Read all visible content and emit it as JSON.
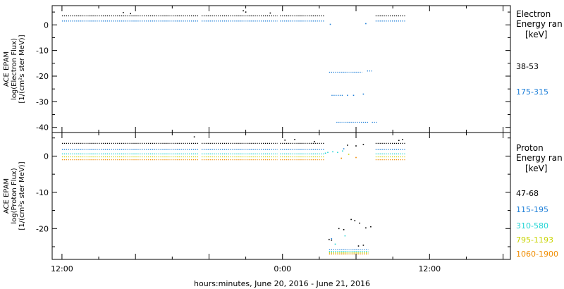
{
  "chart_data": [
    {
      "type": "scatter",
      "ylabel_lines": [
        "ACE EPAM",
        "log(Electron Flux)",
        "[1/(cm²s ster MeV)]"
      ],
      "legend_title_lines": [
        "Electron",
        "Energy ran",
        "[keV]"
      ],
      "legend_placement": "right",
      "ylim": [
        -42,
        7.5
      ],
      "y_ticks": [
        0,
        -10,
        -20,
        -30,
        -40
      ],
      "x_ticks": [
        0,
        6,
        12,
        18,
        24,
        30,
        36
      ],
      "grid": false,
      "series": [
        {
          "name": "38-53",
          "color": "#000000",
          "segments": [
            {
              "x0": 0,
              "x1": 6.6,
              "y": 3.5
            },
            {
              "x0": 6.7,
              "x1": 11.2,
              "y": 3.5
            },
            {
              "x0": 11.4,
              "x1": 17.6,
              "y": 3.5
            },
            {
              "x0": 17.8,
              "x1": 21.4,
              "y": 3.5
            },
            {
              "x0": 25.6,
              "x1": 28.0,
              "y": 3.5
            }
          ],
          "points": [
            {
              "x": 5.0,
              "y": 4.8
            },
            {
              "x": 5.6,
              "y": 4.4
            },
            {
              "x": 14.8,
              "y": 5.5
            },
            {
              "x": 15.0,
              "y": 5.0
            },
            {
              "x": 17.0,
              "y": 4.6
            }
          ]
        },
        {
          "name": "175-315",
          "color": "#1e7fd8",
          "segments": [
            {
              "x0": 0,
              "x1": 6.6,
              "y": 1.5
            },
            {
              "x0": 6.7,
              "x1": 11.2,
              "y": 1.5
            },
            {
              "x0": 11.4,
              "x1": 17.6,
              "y": 1.5
            },
            {
              "x0": 17.8,
              "x1": 21.4,
              "y": 1.5
            },
            {
              "x0": 25.6,
              "x1": 28.0,
              "y": 1.5
            },
            {
              "x0": 21.8,
              "x1": 24.5,
              "y": -18.5
            },
            {
              "x0": 24.9,
              "x1": 25.3,
              "y": -18.0
            },
            {
              "x0": 22.0,
              "x1": 23.0,
              "y": -27.5
            },
            {
              "x0": 22.4,
              "x1": 25.0,
              "y": -38.0
            },
            {
              "x0": 25.3,
              "x1": 25.7,
              "y": -38.0
            }
          ],
          "points": [
            {
              "x": 23.3,
              "y": -27.5
            },
            {
              "x": 23.8,
              "y": -27.5
            },
            {
              "x": 24.6,
              "y": -27.0
            },
            {
              "x": 24.8,
              "y": 0.5
            },
            {
              "x": 21.9,
              "y": 0.2
            }
          ]
        }
      ]
    },
    {
      "type": "scatter",
      "ylabel_lines": [
        "ACE EPAM",
        "log(Proton Flux)",
        "[1/(cm²s ster MeV)]"
      ],
      "legend_title_lines": [
        "Proton",
        "Energy ran",
        "[keV]"
      ],
      "legend_placement": "right",
      "ylim": [
        -28.5,
        6.5
      ],
      "y_ticks": [
        0,
        -10,
        -20
      ],
      "x_ticks": [
        0,
        6,
        12,
        18,
        24,
        30,
        36
      ],
      "x_tick_labels": [
        "12:00",
        "",
        "",
        "0:00",
        "",
        "12:00",
        ""
      ],
      "xlabel": "hours:minutes, June 20, 2016 - June 21, 2016",
      "grid": false,
      "series": [
        {
          "name": "47-68",
          "color": "#000000",
          "segments": [
            {
              "x0": 0,
              "x1": 6.6,
              "y": 3.5
            },
            {
              "x0": 6.7,
              "x1": 11.2,
              "y": 3.5
            },
            {
              "x0": 11.4,
              "x1": 17.6,
              "y": 3.5
            },
            {
              "x0": 17.8,
              "x1": 21.4,
              "y": 3.5
            },
            {
              "x0": 25.6,
              "x1": 28.0,
              "y": 3.5
            }
          ],
          "points": [
            {
              "x": 10.8,
              "y": 5.3
            },
            {
              "x": 18.2,
              "y": 4.4
            },
            {
              "x": 19.0,
              "y": 4.6
            },
            {
              "x": 20.6,
              "y": 4.0
            },
            {
              "x": 23.3,
              "y": 3.0
            },
            {
              "x": 24.0,
              "y": 2.8
            },
            {
              "x": 24.6,
              "y": 3.2
            },
            {
              "x": 27.5,
              "y": 4.3
            },
            {
              "x": 27.8,
              "y": 4.6
            },
            {
              "x": 21.8,
              "y": -23.0
            },
            {
              "x": 22.0,
              "y": -23.2
            },
            {
              "x": 22.6,
              "y": -20.0
            },
            {
              "x": 23.0,
              "y": -20.3
            },
            {
              "x": 23.6,
              "y": -17.5
            },
            {
              "x": 23.9,
              "y": -17.8
            },
            {
              "x": 24.3,
              "y": -18.5
            },
            {
              "x": 24.8,
              "y": -19.8
            },
            {
              "x": 25.2,
              "y": -19.5
            },
            {
              "x": 24.2,
              "y": -24.8
            },
            {
              "x": 24.6,
              "y": -24.6
            }
          ]
        },
        {
          "name": "115-195",
          "color": "#1e7fd8",
          "segments": [
            {
              "x0": 0,
              "x1": 6.6,
              "y": 1.8
            },
            {
              "x0": 6.7,
              "x1": 11.2,
              "y": 1.8
            },
            {
              "x0": 11.4,
              "x1": 17.6,
              "y": 1.8
            },
            {
              "x0": 17.8,
              "x1": 21.4,
              "y": 1.8
            },
            {
              "x0": 25.6,
              "x1": 28.0,
              "y": 1.8
            },
            {
              "x0": 21.8,
              "x1": 25.0,
              "y": -25.8
            }
          ],
          "points": [
            {
              "x": 22.0,
              "y": -22.8
            },
            {
              "x": 23.0,
              "y": 2.0
            }
          ]
        },
        {
          "name": "310-580",
          "color": "#22d4d4",
          "segments": [
            {
              "x0": 0,
              "x1": 6.6,
              "y": 0.6
            },
            {
              "x0": 6.7,
              "x1": 11.2,
              "y": 0.6
            },
            {
              "x0": 11.4,
              "x1": 17.6,
              "y": 0.6
            },
            {
              "x0": 17.8,
              "x1": 21.4,
              "y": 0.6
            },
            {
              "x0": 25.6,
              "x1": 28.0,
              "y": 0.6
            },
            {
              "x0": 21.8,
              "x1": 25.0,
              "y": -26.3
            }
          ],
          "points": [
            {
              "x": 21.5,
              "y": 0.8
            },
            {
              "x": 21.7,
              "y": 1.0
            },
            {
              "x": 22.1,
              "y": 1.2
            },
            {
              "x": 22.5,
              "y": 1.0
            },
            {
              "x": 22.9,
              "y": 1.4
            },
            {
              "x": 23.1,
              "y": -22.0
            },
            {
              "x": 22.3,
              "y": -24.3
            }
          ]
        },
        {
          "name": "795-1193",
          "color": "#c8d400",
          "segments": [
            {
              "x0": 0,
              "x1": 6.6,
              "y": -0.2
            },
            {
              "x0": 6.7,
              "x1": 11.2,
              "y": -0.2
            },
            {
              "x0": 11.4,
              "x1": 17.6,
              "y": -0.2
            },
            {
              "x0": 17.8,
              "x1": 21.4,
              "y": -0.2
            },
            {
              "x0": 25.6,
              "x1": 28.0,
              "y": -0.2
            },
            {
              "x0": 21.8,
              "x1": 25.0,
              "y": -26.7
            }
          ],
          "points": [
            {
              "x": 23.4,
              "y": 0.5
            }
          ]
        },
        {
          "name": "1060-1900",
          "color": "#f08c00",
          "segments": [
            {
              "x0": 0,
              "x1": 6.6,
              "y": -1.0
            },
            {
              "x0": 6.7,
              "x1": 11.2,
              "y": -1.0
            },
            {
              "x0": 11.4,
              "x1": 17.6,
              "y": -1.0
            },
            {
              "x0": 17.8,
              "x1": 21.4,
              "y": -1.0
            },
            {
              "x0": 25.6,
              "x1": 28.0,
              "y": -1.0
            },
            {
              "x0": 21.8,
              "x1": 25.0,
              "y": -27.0
            }
          ],
          "points": [
            {
              "x": 22.8,
              "y": -0.6
            },
            {
              "x": 24.0,
              "y": -0.4
            }
          ]
        }
      ]
    }
  ]
}
